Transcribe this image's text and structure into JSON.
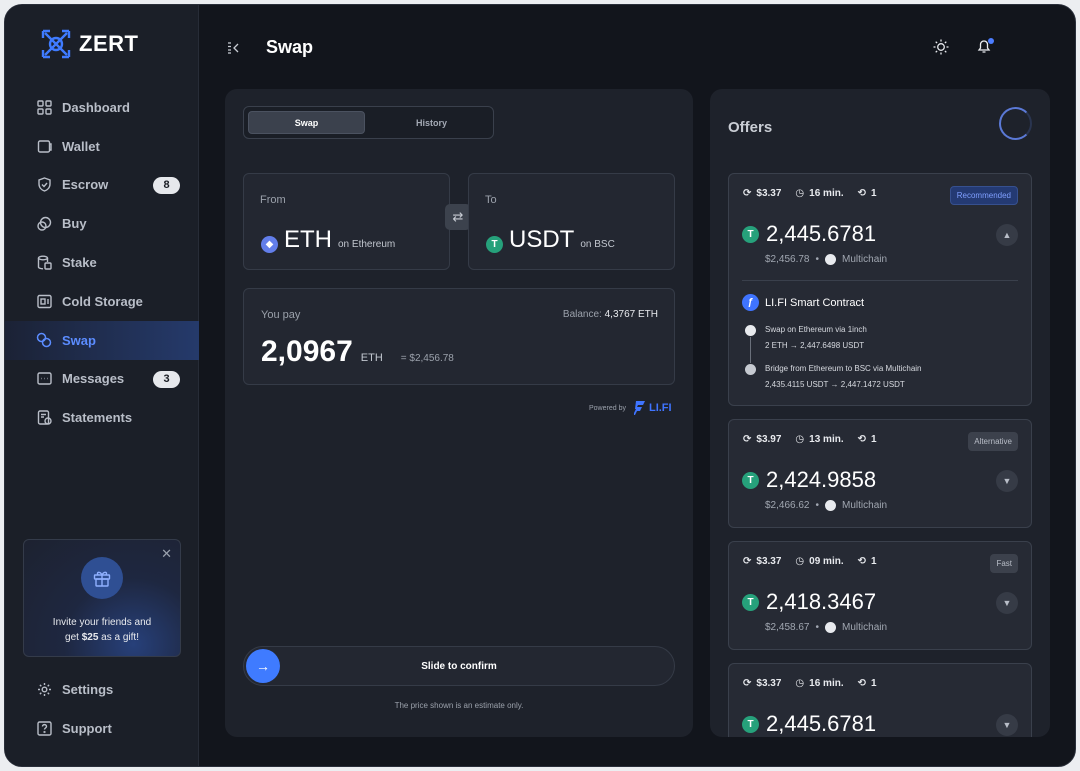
{
  "app": {
    "name": "ZERT"
  },
  "sidebar": {
    "items": [
      {
        "label": "Dashboard",
        "icon": "grid-icon"
      },
      {
        "label": "Wallet",
        "icon": "wallet-icon"
      },
      {
        "label": "Escrow",
        "icon": "shield-icon",
        "badge": "8"
      },
      {
        "label": "Buy",
        "icon": "buy-icon"
      },
      {
        "label": "Stake",
        "icon": "stake-icon"
      },
      {
        "label": "Cold Storage",
        "icon": "storage-icon"
      },
      {
        "label": "Swap",
        "icon": "swap-icon",
        "active": true
      },
      {
        "label": "Messages",
        "icon": "message-icon",
        "badge": "3"
      },
      {
        "label": "Statements",
        "icon": "statements-icon"
      }
    ],
    "promo": {
      "line1": "Invite your friends and",
      "line2_pre": "get ",
      "line2_bold": "$25",
      "line2_post": " as a gift!"
    },
    "bottom": [
      {
        "label": "Settings",
        "icon": "gear-icon"
      },
      {
        "label": "Support",
        "icon": "help-icon"
      }
    ]
  },
  "header": {
    "title": "Swap"
  },
  "swap": {
    "tabs": [
      "Swap",
      "History"
    ],
    "from": {
      "label": "From",
      "token": "ETH",
      "network": "on Ethereum"
    },
    "to": {
      "label": "To",
      "token": "USDT",
      "network": "on BSC"
    },
    "pay": {
      "label": "You pay",
      "balance_label": "Balance:",
      "balance_value": "4,3767 ETH",
      "amount": "2,0967",
      "unit": "ETH",
      "usd": "= $2,456.78"
    },
    "powered_by": "Powered by",
    "provider": "LI.FI",
    "slide_label": "Slide to confirm",
    "estimate_note": "The price shown is an estimate only."
  },
  "offers": {
    "title": "Offers",
    "cards": [
      {
        "fee": "$3.37",
        "time": "16 min.",
        "steps": "1",
        "tag": "Recommended",
        "amount": "2,445.6781",
        "usd": "$2,456.78",
        "network": "Multichain",
        "expanded": true,
        "route": {
          "title": "LI.FI Smart Contract",
          "steps": [
            {
              "line1": "Swap on Ethereum via 1inch",
              "from": "2 ETH",
              "to": "2,447.6498 USDT"
            },
            {
              "line1": "Bridge from Ethereum to BSC via Multichain",
              "from": "2,435.4115 USDT",
              "to": "2,447.1472 USDT"
            }
          ]
        }
      },
      {
        "fee": "$3.97",
        "time": "13 min.",
        "steps": "1",
        "tag": "Alternative",
        "amount": "2,424.9858",
        "usd": "$2,466.62",
        "network": "Multichain"
      },
      {
        "fee": "$3.37",
        "time": "09 min.",
        "steps": "1",
        "tag": "Fast",
        "amount": "2,418.3467",
        "usd": "$2,458.67",
        "network": "Multichain"
      },
      {
        "fee": "$3.37",
        "time": "16 min.",
        "steps": "1",
        "tag": "",
        "amount": "2,445.6781",
        "usd": "",
        "network": ""
      }
    ]
  },
  "colors": {
    "accent": "#3f7bff",
    "background": "#12151c",
    "panel": "#1e222b",
    "usdt": "#26a17b",
    "eth": "#627eea"
  }
}
